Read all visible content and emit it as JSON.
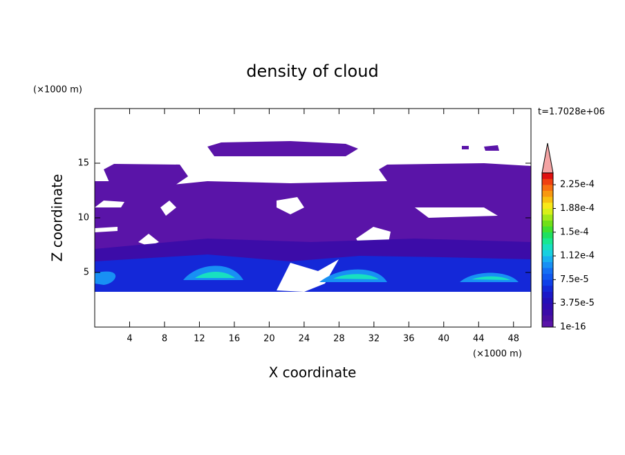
{
  "chart_data": {
    "type": "contour",
    "title": "density of cloud",
    "x_label": "X coordinate",
    "y_label": "Z coordinate",
    "x_unit": "(×1000 m)",
    "y_unit": "(×1000 m)",
    "time_label": "t=1.7028e+06",
    "xlim": [
      0,
      50
    ],
    "ylim": [
      0,
      20
    ],
    "xticks": [
      4,
      8,
      12,
      16,
      20,
      24,
      28,
      32,
      36,
      40,
      44,
      48
    ],
    "yticks": [
      5,
      10,
      15
    ],
    "colorbar": {
      "clim": [
        1e-16,
        0.00024375
      ],
      "colors": [
        "#5a14a8",
        "#4a10a0",
        "#3c0ca8",
        "#300cb0",
        "#2410b8",
        "#1c18c8",
        "#1428d8",
        "#1040e8",
        "#1058f0",
        "#1470f4",
        "#1890f4",
        "#18b0f0",
        "#18d0e0",
        "#18e0c0",
        "#18e890",
        "#20e060",
        "#40e030",
        "#70e018",
        "#a0e818",
        "#d8f018",
        "#f8e818",
        "#f8c010",
        "#f89810",
        "#f87010",
        "#f04010",
        "#e01010"
      ],
      "extend_color": "#f4a4a4",
      "ticks": [
        {
          "value": 1e-16,
          "label": "1e-16"
        },
        {
          "value": 3.75e-05,
          "label": "3.75e-5"
        },
        {
          "value": 7.5e-05,
          "label": "7.5e-5"
        },
        {
          "value": 0.0001125,
          "label": "1.12e-4"
        },
        {
          "value": 0.00015,
          "label": "1.5e-4"
        },
        {
          "value": 0.0001875,
          "label": "1.88e-4"
        },
        {
          "value": 0.000225,
          "label": "2.25e-4"
        }
      ]
    }
  }
}
